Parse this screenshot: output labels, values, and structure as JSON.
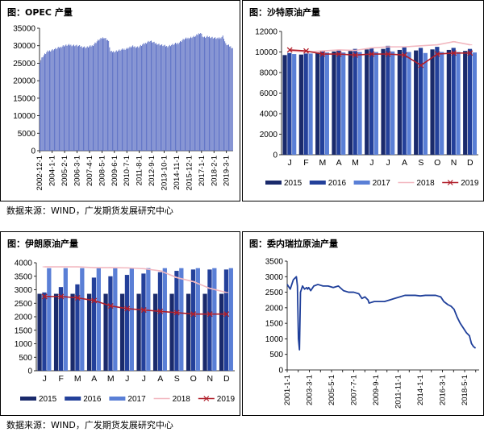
{
  "panels": {
    "tl_title": "图：OPEC 产量",
    "tr_title": "图：沙特原油产量",
    "bl_title": "图：伊朗原油产量",
    "br_title": "图：委内瑞拉原油产量"
  },
  "source_top": "数据来源：WIND，广发期货发展研究中心",
  "source_bottom": "数据来源：WIND，广发期货发展研究中心",
  "colors": {
    "y2015": "#1a2a6b",
    "y2016": "#23409a",
    "y2017": "#5a7fd6",
    "y2018": "#f2b8c0",
    "y2019": "#b01e2a",
    "opec_bar": "#5b6fc4",
    "venez_line": "#1f3f9a"
  },
  "chart_data": [
    {
      "id": "opec",
      "type": "bar",
      "ylim": [
        0,
        35000
      ],
      "yticks": [
        0,
        5000,
        10000,
        15000,
        20000,
        25000,
        30000,
        35000
      ],
      "xticks": [
        "2002-12-1",
        "2004-1-1",
        "2005-2-1",
        "2006-3-1",
        "2007-4-1",
        "2008-5-1",
        "2009-6-1",
        "2010-7-1",
        "2011-8-1",
        "2012-9-1",
        "2013-10-1",
        "2014-11-1",
        "2015-12-1",
        "2017-1-1",
        "2018-2-1",
        "2019-3-1"
      ],
      "anchors": [
        [
          2002.9,
          25200
        ],
        [
          2003.2,
          27000
        ],
        [
          2003.6,
          28300
        ],
        [
          2004.0,
          28800
        ],
        [
          2004.5,
          29300
        ],
        [
          2005.0,
          30000
        ],
        [
          2005.5,
          30200
        ],
        [
          2006.0,
          30100
        ],
        [
          2006.5,
          29800
        ],
        [
          2007.0,
          29500
        ],
        [
          2007.5,
          30000
        ],
        [
          2008.0,
          31500
        ],
        [
          2008.5,
          32400
        ],
        [
          2008.9,
          31500
        ],
        [
          2009.1,
          28200
        ],
        [
          2009.5,
          28400
        ],
        [
          2010.0,
          28800
        ],
        [
          2010.5,
          29200
        ],
        [
          2011.0,
          29800
        ],
        [
          2011.5,
          29600
        ],
        [
          2012.0,
          30500
        ],
        [
          2012.5,
          31400
        ],
        [
          2012.9,
          30800
        ],
        [
          2013.5,
          30200
        ],
        [
          2014.0,
          29800
        ],
        [
          2014.5,
          30300
        ],
        [
          2015.0,
          30800
        ],
        [
          2015.5,
          31900
        ],
        [
          2016.0,
          32300
        ],
        [
          2016.5,
          32700
        ],
        [
          2016.9,
          33800
        ],
        [
          2017.2,
          32300
        ],
        [
          2017.6,
          32600
        ],
        [
          2018.0,
          32300
        ],
        [
          2018.5,
          32000
        ],
        [
          2018.9,
          32800
        ],
        [
          2019.1,
          30500
        ],
        [
          2019.5,
          29800
        ],
        [
          2019.7,
          29400
        ]
      ]
    },
    {
      "id": "saudi",
      "type": "bar",
      "categories": [
        "J",
        "F",
        "M",
        "A",
        "M",
        "J",
        "J",
        "A",
        "S",
        "O",
        "N",
        "D"
      ],
      "ylim": [
        0,
        12000
      ],
      "yticks": [
        0,
        2000,
        4000,
        6000,
        8000,
        10000,
        12000
      ],
      "series": [
        {
          "name": "2015",
          "kind": "bar",
          "values": [
            9700,
            9750,
            9950,
            10050,
            10100,
            10250,
            10300,
            10200,
            10150,
            10250,
            10200,
            10100
          ]
        },
        {
          "name": "2016",
          "kind": "bar",
          "values": [
            9900,
            9850,
            10100,
            10200,
            10300,
            10400,
            10600,
            10500,
            10400,
            10500,
            10400,
            10300
          ]
        },
        {
          "name": "2017",
          "kind": "bar",
          "values": [
            9800,
            9850,
            9950,
            9950,
            10000,
            10000,
            10050,
            10000,
            9900,
            10000,
            10000,
            9950
          ]
        },
        {
          "name": "2018",
          "kind": "line",
          "values": [
            10100,
            10000,
            10100,
            10200,
            10150,
            10400,
            10500,
            10500,
            10600,
            10700,
            11000,
            10700
          ]
        },
        {
          "name": "2019",
          "kind": "line",
          "values": [
            10200,
            10100,
            9800,
            9800,
            9700,
            9800,
            9800,
            9700,
            8700,
            9800,
            9900,
            9900
          ]
        }
      ]
    },
    {
      "id": "iran",
      "type": "bar",
      "categories": [
        "J",
        "F",
        "M",
        "A",
        "M",
        "J",
        "J",
        "A",
        "S",
        "O",
        "N",
        "D"
      ],
      "ylim": [
        0,
        4000
      ],
      "yticks": [
        0,
        500,
        1000,
        1500,
        2000,
        2500,
        3000,
        3500,
        4000
      ],
      "series": [
        {
          "name": "2015",
          "kind": "bar",
          "values": [
            2850,
            2850,
            2850,
            2850,
            2850,
            2850,
            2850,
            2850,
            2850,
            2850,
            2850,
            2850
          ]
        },
        {
          "name": "2016",
          "kind": "bar",
          "values": [
            2900,
            3100,
            3200,
            3450,
            3500,
            3550,
            3600,
            3650,
            3700,
            3750,
            3750,
            3750
          ]
        },
        {
          "name": "2017",
          "kind": "bar",
          "values": [
            3800,
            3800,
            3800,
            3800,
            3800,
            3800,
            3800,
            3800,
            3800,
            3800,
            3800,
            3800
          ]
        },
        {
          "name": "2018",
          "kind": "line",
          "values": [
            3850,
            3850,
            3850,
            3820,
            3820,
            3810,
            3780,
            3700,
            3450,
            3300,
            3050,
            2900
          ]
        },
        {
          "name": "2019",
          "kind": "line",
          "values": [
            2750,
            2750,
            2700,
            2600,
            2400,
            2300,
            2250,
            2200,
            2150,
            2100,
            2100,
            2100
          ]
        }
      ]
    },
    {
      "id": "venezuela",
      "type": "line",
      "ylim": [
        0,
        3500
      ],
      "yticks": [
        0,
        500,
        1000,
        1500,
        2000,
        2500,
        3000,
        3500
      ],
      "xticks": [
        "2001-1-1",
        "2002-2-1",
        "2003-3-1",
        "2004-4-1",
        "2005-5-1",
        "2006-6-1",
        "2007-7-1",
        "2008-8-1",
        "2009-9-1",
        "2010-10-1",
        "2011-11-1",
        "2012-12-1",
        "2014-1-1",
        "2015-2-1",
        "2016-3-1",
        "2017-4-1",
        "2018-5-1",
        "2019-6-1"
      ],
      "tick_labels_shown": [
        "2001-1-1",
        "2003-3-1",
        "2005-5-1",
        "2007-7-1",
        "2009-9-1",
        "2011-11-1",
        "2014-1-1",
        "2016-3-1",
        "2018-5-1"
      ],
      "x": [
        "2001.0",
        "2001.3",
        "2001.6",
        "2001.9",
        "2002.0",
        "2002.1",
        "2002.2",
        "2002.3",
        "2002.5",
        "2002.7",
        "2002.9",
        "2003.0",
        "2003.1",
        "2003.3",
        "2003.6",
        "2004.0",
        "2004.5",
        "2005.0",
        "2005.5",
        "2006.0",
        "2006.5",
        "2007.0",
        "2007.5",
        "2008.0",
        "2008.3",
        "2008.6",
        "2008.9",
        "2009.0",
        "2009.5",
        "2010.0",
        "2010.5",
        "2011.0",
        "2011.5",
        "2012.0",
        "2012.5",
        "2013.0",
        "2013.5",
        "2014.0",
        "2014.5",
        "2015.0",
        "2015.5",
        "2016.0",
        "2016.3",
        "2016.7",
        "2017.0",
        "2017.3",
        "2017.6",
        "2017.9",
        "2018.2",
        "2018.5",
        "2018.8",
        "2019.0",
        "2019.2",
        "2019.4"
      ],
      "values": [
        2750,
        2600,
        2900,
        3000,
        2700,
        1000,
        650,
        2500,
        2700,
        2600,
        2650,
        2600,
        2650,
        2550,
        2700,
        2750,
        2700,
        2700,
        2650,
        2700,
        2550,
        2500,
        2500,
        2450,
        2300,
        2350,
        2250,
        2150,
        2200,
        2200,
        2200,
        2250,
        2300,
        2350,
        2400,
        2400,
        2400,
        2380,
        2400,
        2400,
        2400,
        2350,
        2200,
        2100,
        2050,
        1950,
        1700,
        1500,
        1350,
        1200,
        1100,
        850,
        750,
        700
      ]
    }
  ]
}
